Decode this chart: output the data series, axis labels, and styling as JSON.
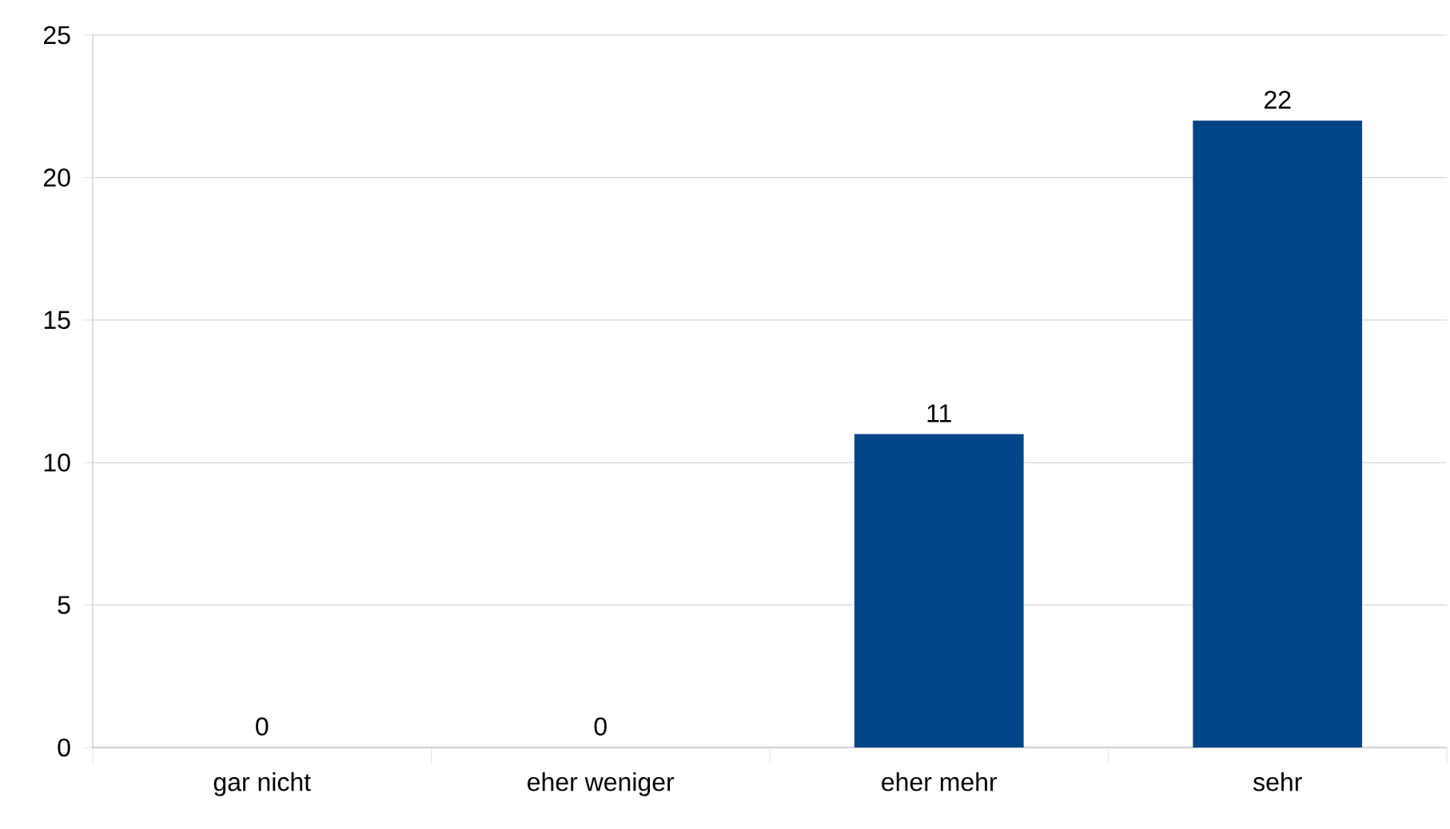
{
  "chart_data": {
    "type": "bar",
    "categories": [
      "gar nicht",
      "eher weniger",
      "eher mehr",
      "sehr"
    ],
    "values": [
      0,
      0,
      11,
      22
    ],
    "color": "#004586",
    "ylim": [
      0,
      25
    ],
    "yticks": [
      0,
      5,
      10,
      15,
      20,
      25
    ],
    "grid": "y",
    "data_labels": true
  }
}
